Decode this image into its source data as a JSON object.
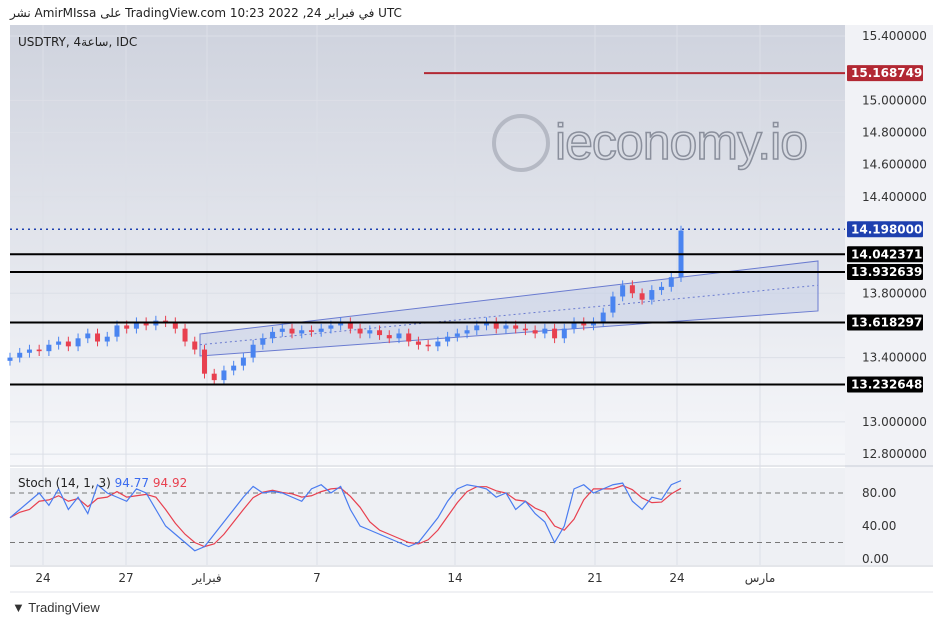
{
  "header": {
    "publish_line": "نشر AmirMIssa على TradingView.com 10:23 2022 ,24 في فبراير UTC"
  },
  "symbol_label": "USDTRY, 4ساعة, IDC",
  "footer": {
    "brand": "TradingView",
    "watermark": "ieconomy.io"
  },
  "chart_data": {
    "type": "candlestick",
    "price_axis": {
      "range": [
        12.8,
        15.4
      ],
      "ticks": [
        "15.400000",
        "15.000000",
        "14.800000",
        "14.600000",
        "14.400000",
        "13.800000",
        "13.400000",
        "13.000000",
        "12.800000"
      ],
      "tick_values": [
        15.4,
        15.0,
        14.8,
        14.6,
        14.4,
        13.8,
        13.4,
        13.0,
        12.8
      ]
    },
    "x_ticks": [
      "24",
      "27",
      "فبراير",
      "7",
      "14",
      "21",
      "24",
      "مارس"
    ],
    "closes": [
      13.4,
      13.43,
      13.45,
      13.44,
      13.48,
      13.5,
      13.47,
      13.52,
      13.55,
      13.5,
      13.53,
      13.6,
      13.58,
      13.62,
      13.6,
      13.63,
      13.62,
      13.58,
      13.5,
      13.45,
      13.3,
      13.26,
      13.32,
      13.35,
      13.4,
      13.48,
      13.52,
      13.56,
      13.58,
      13.55,
      13.57,
      13.56,
      13.58,
      13.6,
      13.62,
      13.58,
      13.55,
      13.57,
      13.54,
      13.52,
      13.55,
      13.5,
      13.48,
      13.47,
      13.5,
      13.53,
      13.55,
      13.57,
      13.6,
      13.62,
      13.58,
      13.6,
      13.58,
      13.57,
      13.55,
      13.58,
      13.52,
      13.58,
      13.62,
      13.6,
      13.62,
      13.68,
      13.78,
      13.85,
      13.8,
      13.76,
      13.82,
      13.84,
      13.9,
      14.19
    ],
    "levels": [
      {
        "label": "15.168749",
        "value": 15.168749,
        "color": "#b22833"
      },
      {
        "label": "14.198000",
        "value": 14.198,
        "color": "#1e40af",
        "style": "dotted"
      },
      {
        "label": "14.042371",
        "value": 14.042371,
        "color": "#000000"
      },
      {
        "label": "13.932639",
        "value": 13.932639,
        "color": "#000000"
      },
      {
        "label": "13.618297",
        "value": 13.618297,
        "color": "#000000"
      },
      {
        "label": "13.232648",
        "value": 13.232648,
        "color": "#000000"
      }
    ],
    "channel": {
      "upper": [
        13.547,
        14.001
      ],
      "lower": [
        13.41,
        13.69
      ],
      "middle": [
        13.48,
        13.85
      ]
    },
    "colors": {
      "up": "#4a84f0",
      "down": "#e8404f",
      "channel_fill": "#c5cde6"
    },
    "stoch": {
      "label": "Stoch (14, 1, 3)",
      "k_value": "94.77",
      "d_value": "94.92",
      "levels": [
        "80.00",
        "40.00",
        "0.00"
      ],
      "k": [
        50,
        60,
        70,
        80,
        65,
        85,
        60,
        75,
        55,
        90,
        80,
        75,
        70,
        85,
        80,
        60,
        40,
        30,
        20,
        10,
        15,
        30,
        45,
        60,
        75,
        88,
        80,
        82,
        80,
        75,
        70,
        85,
        90,
        80,
        88,
        60,
        40,
        35,
        30,
        25,
        20,
        15,
        20,
        35,
        50,
        70,
        85,
        90,
        88,
        85,
        75,
        80,
        60,
        70,
        55,
        45,
        20,
        40,
        85,
        90,
        80,
        85,
        90,
        92,
        70,
        60,
        75,
        72,
        90,
        95
      ]
    }
  }
}
